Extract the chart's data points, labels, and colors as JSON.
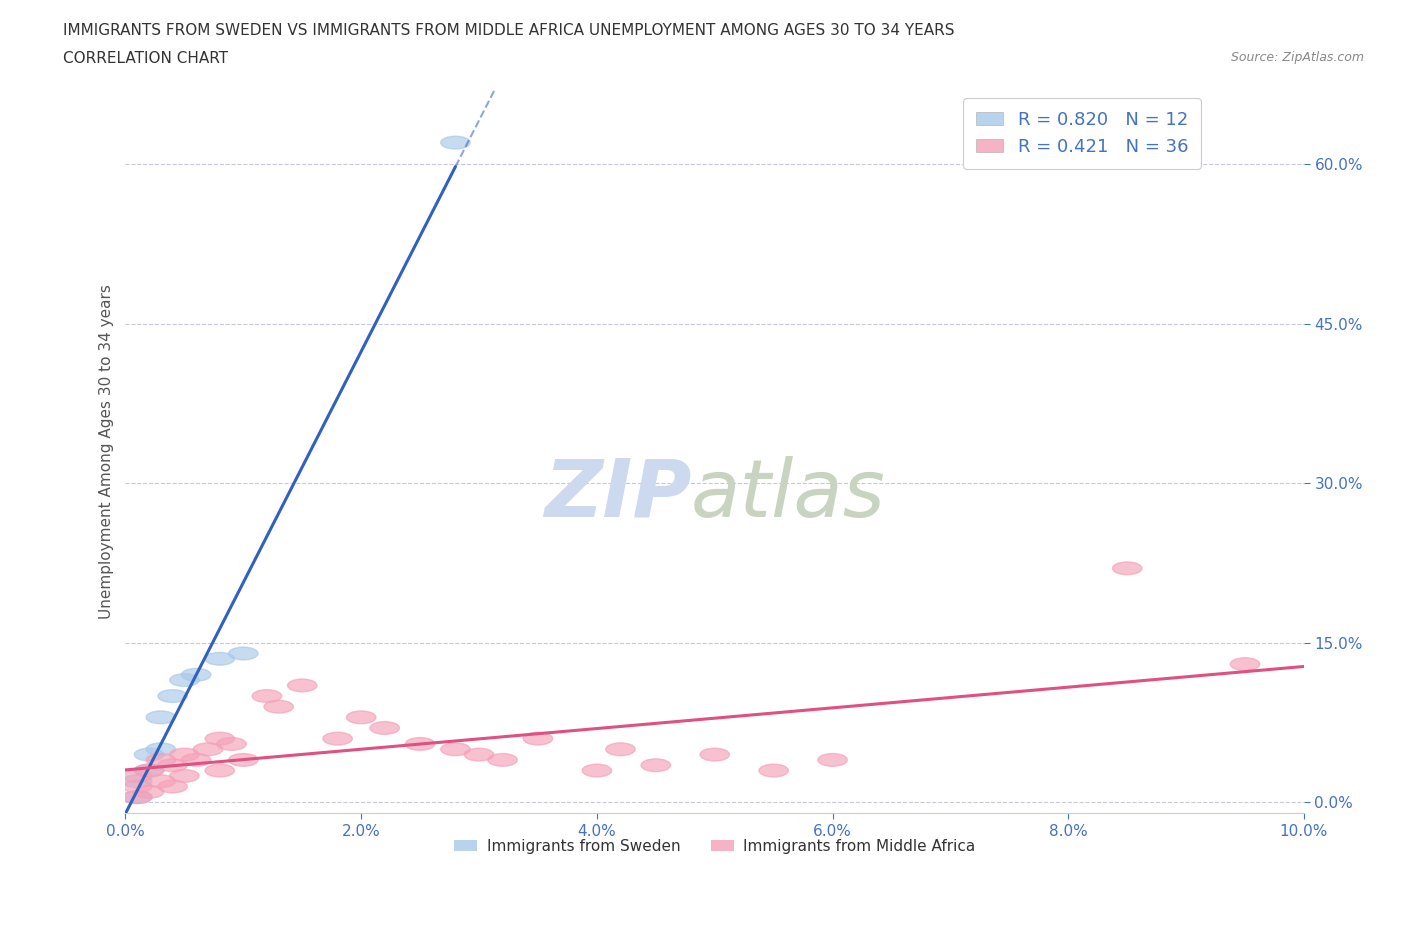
{
  "title_line1": "IMMIGRANTS FROM SWEDEN VS IMMIGRANTS FROM MIDDLE AFRICA UNEMPLOYMENT AMONG AGES 30 TO 34 YEARS",
  "title_line2": "CORRELATION CHART",
  "source": "Source: ZipAtlas.com",
  "ylabel": "Unemployment Among Ages 30 to 34 years",
  "legend_label1": "Immigrants from Sweden",
  "legend_label2": "Immigrants from Middle Africa",
  "R1": "0.820",
  "N1": "12",
  "R2": "0.421",
  "N2": "36",
  "color_sweden": "#a8c8e8",
  "color_africa": "#f4a0b8",
  "color_sweden_line": "#3060c0",
  "color_africa_line": "#e05080",
  "xlim": [
    0.0,
    0.1
  ],
  "ylim": [
    -0.01,
    0.67
  ],
  "sweden_x": [
    0.001,
    0.001,
    0.002,
    0.002,
    0.003,
    0.003,
    0.004,
    0.005,
    0.006,
    0.008,
    0.01,
    0.028
  ],
  "sweden_y": [
    0.005,
    0.02,
    0.03,
    0.045,
    0.05,
    0.08,
    0.1,
    0.115,
    0.12,
    0.135,
    0.14,
    0.62
  ],
  "africa_x": [
    0.001,
    0.001,
    0.001,
    0.002,
    0.002,
    0.003,
    0.003,
    0.004,
    0.004,
    0.005,
    0.005,
    0.006,
    0.007,
    0.008,
    0.008,
    0.009,
    0.01,
    0.012,
    0.013,
    0.015,
    0.018,
    0.02,
    0.022,
    0.025,
    0.028,
    0.03,
    0.032,
    0.035,
    0.04,
    0.042,
    0.045,
    0.05,
    0.055,
    0.06,
    0.085,
    0.095
  ],
  "africa_y": [
    0.005,
    0.015,
    0.025,
    0.01,
    0.03,
    0.02,
    0.04,
    0.015,
    0.035,
    0.025,
    0.045,
    0.04,
    0.05,
    0.03,
    0.06,
    0.055,
    0.04,
    0.1,
    0.09,
    0.11,
    0.06,
    0.08,
    0.07,
    0.055,
    0.05,
    0.045,
    0.04,
    0.06,
    0.03,
    0.05,
    0.035,
    0.045,
    0.03,
    0.04,
    0.22,
    0.13
  ],
  "background_color": "#ffffff",
  "grid_color": "#c8c8d8",
  "title_fontsize": 11,
  "axis_label_fontsize": 11,
  "tick_fontsize": 11,
  "watermark_zip": "ZIP",
  "watermark_atlas": "atlas",
  "watermark_color_zip": "#c8d8ee",
  "watermark_color_atlas": "#c8d8c8"
}
